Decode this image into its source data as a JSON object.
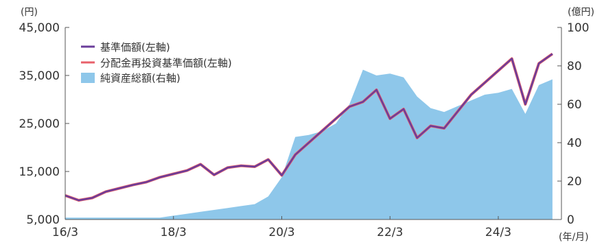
{
  "chart_data": {
    "type": "line",
    "left_axis_unit": "(円)",
    "right_axis_unit": "(億円)",
    "x_axis_unit": "(年/月)",
    "left_ylim": [
      5000,
      45000
    ],
    "right_ylim": [
      0,
      100
    ],
    "left_ticks": [
      "45,000",
      "35,000",
      "25,000",
      "15,000",
      "5,000"
    ],
    "right_ticks": [
      "100",
      "80",
      "60",
      "40",
      "20",
      "0"
    ],
    "x_ticks": [
      "16/3",
      "18/3",
      "20/3",
      "22/3",
      "24/3"
    ],
    "legend_position": "top-left",
    "colors": {
      "nav": "#6a3d9a",
      "reinvested_nav": "#e8606a",
      "net_assets": "#8ec7ea"
    },
    "legend": {
      "nav": "基準価額(左軸)",
      "reinvested_nav": "分配金再投資基準価額(左軸)",
      "net_assets": "純資産総額(右軸)"
    },
    "x": [
      "2016-03",
      "2016-06",
      "2016-09",
      "2016-12",
      "2017-03",
      "2017-06",
      "2017-09",
      "2017-12",
      "2018-03",
      "2018-06",
      "2018-09",
      "2018-12",
      "2019-03",
      "2019-06",
      "2019-09",
      "2019-12",
      "2020-03",
      "2020-06",
      "2020-09",
      "2020-12",
      "2021-03",
      "2021-06",
      "2021-09",
      "2021-12",
      "2022-03",
      "2022-06",
      "2022-09",
      "2022-12",
      "2023-03",
      "2023-06",
      "2023-09",
      "2023-12",
      "2024-03",
      "2024-06",
      "2024-09",
      "2024-12",
      "2025-03"
    ],
    "series": [
      {
        "key": "nav",
        "axis": "left",
        "values": [
          10000,
          9000,
          9500,
          10800,
          11500,
          12200,
          12800,
          13800,
          14500,
          15200,
          16500,
          14300,
          15800,
          16200,
          16000,
          17500,
          14200,
          18500,
          21000,
          23500,
          26000,
          28500,
          29500,
          32000,
          26000,
          28000,
          22000,
          24500,
          24000,
          27500,
          31000,
          33500,
          36000,
          38500,
          29000,
          37500,
          39500
        ]
      },
      {
        "key": "reinvested_nav",
        "axis": "left",
        "values": [
          10000,
          9000,
          9500,
          10800,
          11500,
          12200,
          12800,
          13800,
          14500,
          15200,
          16500,
          14300,
          15800,
          16200,
          16000,
          17500,
          14200,
          18500,
          21000,
          23500,
          26000,
          28500,
          29500,
          32000,
          26000,
          28000,
          22000,
          24500,
          24000,
          27500,
          31000,
          33500,
          36000,
          38500,
          29000,
          37500,
          39500
        ]
      },
      {
        "key": "net_assets",
        "axis": "right",
        "values": [
          1,
          1,
          1,
          1,
          1,
          1,
          1,
          1,
          2,
          3,
          4,
          5,
          6,
          7,
          8,
          12,
          22,
          43,
          44,
          46,
          50,
          60,
          78,
          75,
          76,
          74,
          64,
          58,
          56,
          59,
          62,
          65,
          66,
          68,
          55,
          70,
          73
        ]
      }
    ]
  }
}
